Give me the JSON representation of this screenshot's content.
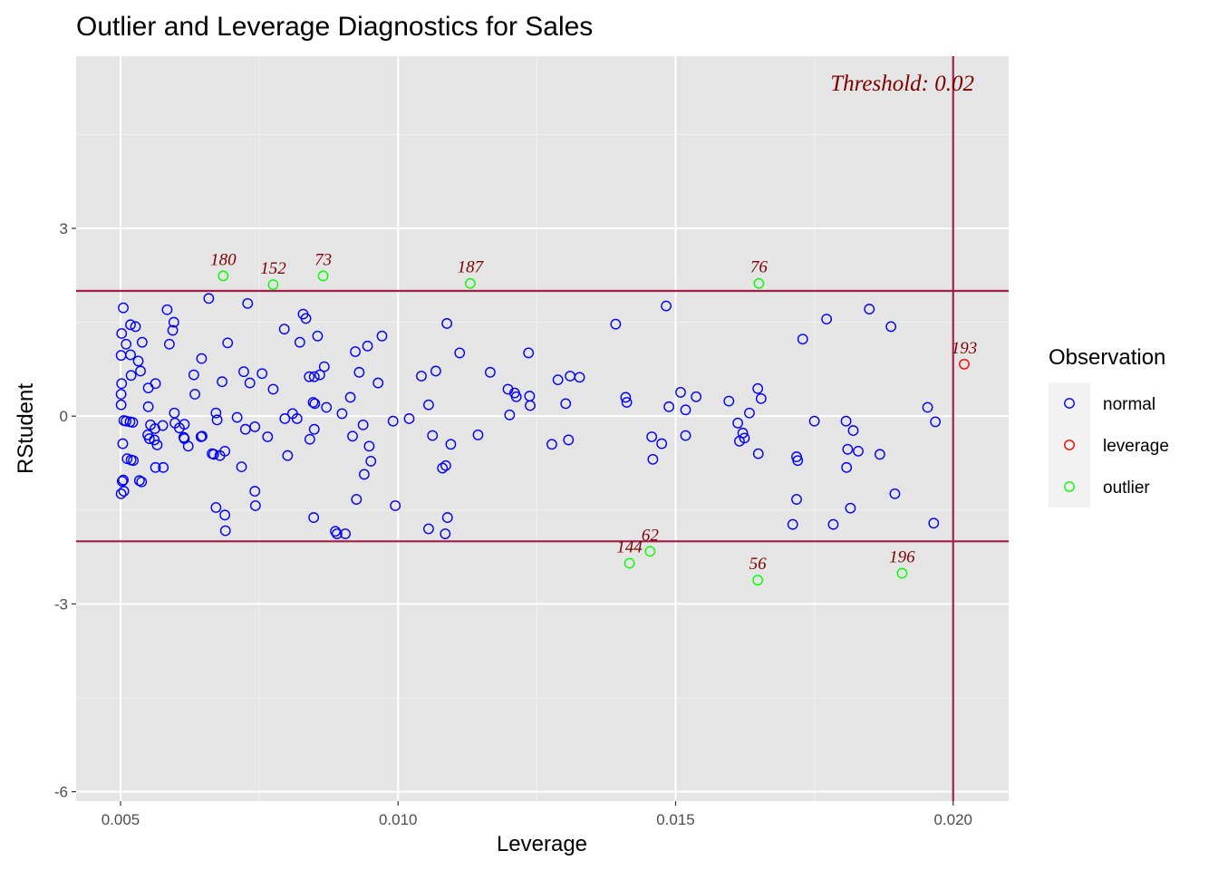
{
  "chart_data": {
    "type": "scatter",
    "title": "Outlier and Leverage Diagnostics for Sales",
    "xlabel": "Leverage",
    "ylabel": "RStudent",
    "xlim": [
      0.0042,
      0.021
    ],
    "ylim": [
      -6.15,
      5.75
    ],
    "x_ticks": [
      0.005,
      0.01,
      0.015,
      0.02
    ],
    "x_tick_labels": [
      "0.005",
      "0.010",
      "0.015",
      "0.020"
    ],
    "y_ticks": [
      -6,
      -3,
      0,
      3
    ],
    "y_tick_labels": [
      "-6",
      "-3",
      "0",
      "3"
    ],
    "grid": true,
    "hlines": [
      2,
      -2
    ],
    "vline": 0.02,
    "threshold_label": "Threshold: 0.02",
    "reference_line_color": "#a0204a",
    "legend": {
      "title": "Observation",
      "position": "right",
      "entries": [
        {
          "key": "normal",
          "label": "normal",
          "color": "#0000ff"
        },
        {
          "key": "leverage",
          "label": "leverage",
          "color": "#ff0000"
        },
        {
          "key": "outlier",
          "label": "outlier",
          "color": "#00ff00"
        }
      ]
    },
    "labeled_points": [
      {
        "x": 0.00685,
        "y": 2.24,
        "label": "180",
        "type": "outlier"
      },
      {
        "x": 0.00775,
        "y": 2.1,
        "label": "152",
        "type": "outlier"
      },
      {
        "x": 0.00865,
        "y": 2.24,
        "label": "73",
        "type": "outlier"
      },
      {
        "x": 0.0113,
        "y": 2.12,
        "label": "187",
        "type": "outlier"
      },
      {
        "x": 0.0165,
        "y": 2.12,
        "label": "76",
        "type": "outlier"
      },
      {
        "x": 0.0202,
        "y": 0.83,
        "label": "193",
        "type": "leverage"
      },
      {
        "x": 0.01417,
        "y": -2.35,
        "label": "144",
        "type": "outlier"
      },
      {
        "x": 0.01454,
        "y": -2.16,
        "label": "62",
        "type": "outlier"
      },
      {
        "x": 0.01648,
        "y": -2.62,
        "label": "56",
        "type": "outlier"
      },
      {
        "x": 0.01908,
        "y": -2.51,
        "label": "196",
        "type": "outlier"
      }
    ],
    "normal_points": [
      [
        0.00505,
        1.73
      ],
      [
        0.00502,
        1.32
      ],
      [
        0.0051,
        1.15
      ],
      [
        0.00518,
        1.46
      ],
      [
        0.00527,
        1.43
      ],
      [
        0.00501,
        0.97
      ],
      [
        0.00518,
        0.98
      ],
      [
        0.00532,
        0.88
      ],
      [
        0.00539,
        1.18
      ],
      [
        0.00536,
        0.72
      ],
      [
        0.00519,
        0.65
      ],
      [
        0.00502,
        0.52
      ],
      [
        0.00501,
        0.35
      ],
      [
        0.00501,
        0.18
      ],
      [
        0.00506,
        -0.07
      ],
      [
        0.0051,
        -0.08
      ],
      [
        0.00517,
        -0.09
      ],
      [
        0.00522,
        -0.1
      ],
      [
        0.00504,
        -0.44
      ],
      [
        0.00512,
        -0.68
      ],
      [
        0.00519,
        -0.7
      ],
      [
        0.00523,
        -0.71
      ],
      [
        0.00505,
        -1.02
      ],
      [
        0.00503,
        -1.04
      ],
      [
        0.00506,
        -1.2
      ],
      [
        0.00501,
        -1.24
      ],
      [
        0.00534,
        -1.03
      ],
      [
        0.00538,
        -1.05
      ],
      [
        0.0055,
        0.45
      ],
      [
        0.00563,
        0.52
      ],
      [
        0.0055,
        0.15
      ],
      [
        0.00549,
        -0.3
      ],
      [
        0.00552,
        -0.36
      ],
      [
        0.00561,
        -0.38
      ],
      [
        0.00554,
        -0.14
      ],
      [
        0.00562,
        -0.2
      ],
      [
        0.00566,
        -0.46
      ],
      [
        0.00576,
        -0.15
      ],
      [
        0.00577,
        -0.82
      ],
      [
        0.00563,
        -0.82
      ],
      [
        0.00584,
        1.7
      ],
      [
        0.00596,
        1.5
      ],
      [
        0.00594,
        1.37
      ],
      [
        0.00588,
        1.15
      ],
      [
        0.00597,
        0.05
      ],
      [
        0.00598,
        -0.11
      ],
      [
        0.00606,
        -0.19
      ],
      [
        0.00615,
        -0.13
      ],
      [
        0.00614,
        -0.34
      ],
      [
        0.00615,
        -0.36
      ],
      [
        0.00622,
        -0.48
      ],
      [
        0.00632,
        0.66
      ],
      [
        0.00634,
        0.35
      ],
      [
        0.00645,
        -0.33
      ],
      [
        0.00647,
        -0.32
      ],
      [
        0.00646,
        0.92
      ],
      [
        0.00659,
        1.88
      ],
      [
        0.00672,
        0.05
      ],
      [
        0.00674,
        -0.06
      ],
      [
        0.00665,
        -0.6
      ],
      [
        0.00668,
        -0.61
      ],
      [
        0.00679,
        -0.63
      ],
      [
        0.00672,
        -1.46
      ],
      [
        0.00683,
        0.55
      ],
      [
        0.00688,
        -0.56
      ],
      [
        0.00688,
        -1.58
      ],
      [
        0.00689,
        -1.83
      ],
      [
        0.00693,
        1.17
      ],
      [
        0.0071,
        -0.02
      ],
      [
        0.00718,
        -0.81
      ],
      [
        0.00722,
        0.71
      ],
      [
        0.00725,
        -0.21
      ],
      [
        0.00729,
        1.8
      ],
      [
        0.00733,
        0.53
      ],
      [
        0.00742,
        -1.2
      ],
      [
        0.00743,
        -1.43
      ],
      [
        0.00742,
        -0.17
      ],
      [
        0.00755,
        0.68
      ],
      [
        0.00765,
        -0.33
      ],
      [
        0.00775,
        0.43
      ],
      [
        0.00795,
        1.39
      ],
      [
        0.00796,
        -0.04
      ],
      [
        0.00801,
        -0.63
      ],
      [
        0.0081,
        0.04
      ],
      [
        0.00818,
        -0.04
      ],
      [
        0.00823,
        1.18
      ],
      [
        0.00829,
        1.63
      ],
      [
        0.00834,
        1.56
      ],
      [
        0.0084,
        0.63
      ],
      [
        0.00841,
        -0.37
      ],
      [
        0.00847,
        0.22
      ],
      [
        0.0085,
        0.2
      ],
      [
        0.00849,
        0.63
      ],
      [
        0.00849,
        -0.21
      ],
      [
        0.00848,
        -1.62
      ],
      [
        0.00855,
        1.28
      ],
      [
        0.00859,
        0.66
      ],
      [
        0.00867,
        0.79
      ],
      [
        0.00871,
        0.14
      ],
      [
        0.00887,
        -1.84
      ],
      [
        0.0089,
        -1.88
      ],
      [
        0.00899,
        0.04
      ],
      [
        0.00905,
        -1.88
      ],
      [
        0.00914,
        0.3
      ],
      [
        0.00918,
        -0.32
      ],
      [
        0.00923,
        1.03
      ],
      [
        0.00925,
        -1.33
      ],
      [
        0.0093,
        0.7
      ],
      [
        0.00937,
        -0.14
      ],
      [
        0.00939,
        -0.93
      ],
      [
        0.00945,
        1.12
      ],
      [
        0.00948,
        -0.48
      ],
      [
        0.00951,
        -0.72
      ],
      [
        0.00964,
        0.53
      ],
      [
        0.00971,
        1.28
      ],
      [
        0.00991,
        -0.08
      ],
      [
        0.00995,
        -1.43
      ],
      [
        0.0102,
        -0.04
      ],
      [
        0.01042,
        0.64
      ],
      [
        0.01055,
        -1.8
      ],
      [
        0.01055,
        0.18
      ],
      [
        0.01062,
        -0.31
      ],
      [
        0.01068,
        0.72
      ],
      [
        0.0108,
        -0.83
      ],
      [
        0.01085,
        -1.88
      ],
      [
        0.01086,
        -0.79
      ],
      [
        0.01088,
        1.48
      ],
      [
        0.01089,
        -1.62
      ],
      [
        0.01095,
        -0.45
      ],
      [
        0.01111,
        1.01
      ],
      [
        0.01144,
        -0.3
      ],
      [
        0.01166,
        0.7
      ],
      [
        0.01198,
        0.43
      ],
      [
        0.01201,
        0.02
      ],
      [
        0.0121,
        0.37
      ],
      [
        0.01213,
        0.31
      ],
      [
        0.01235,
        1.01
      ],
      [
        0.01237,
        0.32
      ],
      [
        0.01238,
        0.17
      ],
      [
        0.01277,
        -0.45
      ],
      [
        0.01288,
        0.58
      ],
      [
        0.01302,
        0.2
      ],
      [
        0.01307,
        -0.38
      ],
      [
        0.0131,
        0.64
      ],
      [
        0.01327,
        0.62
      ],
      [
        0.01392,
        1.47
      ],
      [
        0.0141,
        0.3
      ],
      [
        0.01412,
        0.22
      ],
      [
        0.01457,
        -0.33
      ],
      [
        0.01459,
        -0.69
      ],
      [
        0.01475,
        -0.44
      ],
      [
        0.01483,
        1.76
      ],
      [
        0.01488,
        0.15
      ],
      [
        0.01509,
        0.38
      ],
      [
        0.01518,
        -0.31
      ],
      [
        0.01518,
        0.1
      ],
      [
        0.01537,
        0.31
      ],
      [
        0.01596,
        0.24
      ],
      [
        0.01612,
        -0.11
      ],
      [
        0.01615,
        -0.4
      ],
      [
        0.01621,
        -0.27
      ],
      [
        0.01624,
        -0.35
      ],
      [
        0.01633,
        0.05
      ],
      [
        0.01648,
        0.44
      ],
      [
        0.01654,
        0.28
      ],
      [
        0.01649,
        -0.6
      ],
      [
        0.01711,
        -1.73
      ],
      [
        0.01718,
        -1.33
      ],
      [
        0.01718,
        -0.65
      ],
      [
        0.0172,
        -0.71
      ],
      [
        0.01729,
        1.23
      ],
      [
        0.0175,
        -0.08
      ],
      [
        0.01772,
        1.55
      ],
      [
        0.01784,
        -1.73
      ],
      [
        0.01807,
        -0.08
      ],
      [
        0.0181,
        -0.53
      ],
      [
        0.01808,
        -0.82
      ],
      [
        0.01815,
        -1.47
      ],
      [
        0.0182,
        -0.23
      ],
      [
        0.01829,
        -0.56
      ],
      [
        0.01849,
        1.71
      ],
      [
        0.01868,
        -0.61
      ],
      [
        0.01888,
        1.43
      ],
      [
        0.01895,
        -1.24
      ],
      [
        0.01954,
        0.14
      ],
      [
        0.01968,
        -0.09
      ],
      [
        0.01965,
        -1.71
      ]
    ]
  }
}
